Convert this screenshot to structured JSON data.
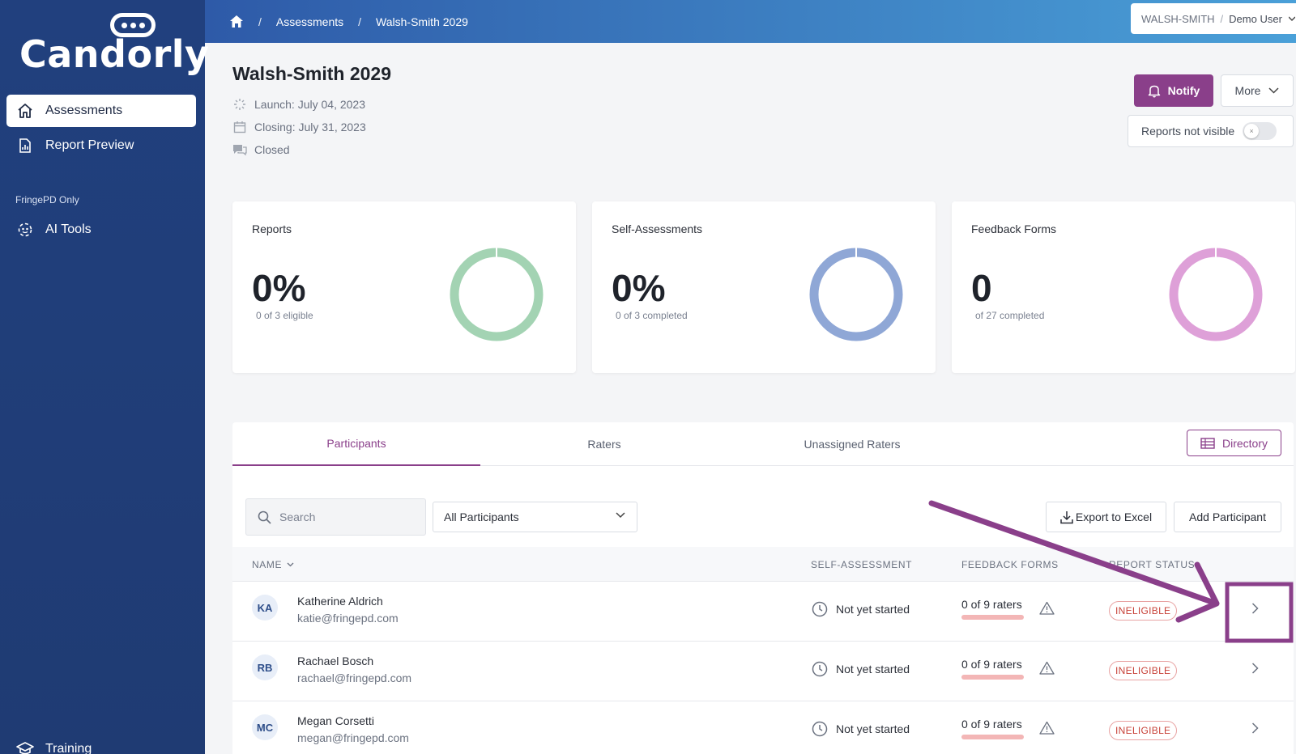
{
  "app": {
    "logo_text": "Candorly"
  },
  "sidebar": {
    "items": [
      {
        "label": "Assessments",
        "icon": "home-icon",
        "active": true
      },
      {
        "label": "Report Preview",
        "icon": "report-icon",
        "active": false
      }
    ],
    "section_label": "FringePD Only",
    "tools": [
      {
        "label": "AI Tools",
        "icon": "ai-tools-icon"
      }
    ],
    "footer_item": {
      "label": "Training",
      "icon": "graduation-cap-icon"
    }
  },
  "topbar": {
    "breadcrumbs": [
      "Assessments",
      "Walsh-Smith 2029"
    ],
    "org": "WALSH-SMITH",
    "user": "Demo User"
  },
  "header": {
    "title": "Walsh-Smith 2029",
    "launch": "Launch: July 04, 2023",
    "closing": "Closing: July 31, 2023",
    "status": "Closed",
    "notify_label": "Notify",
    "more_label": "More",
    "reports_visibility_label": "Reports not visible",
    "reports_visible": false
  },
  "stats": [
    {
      "title": "Reports",
      "value": "0%",
      "sub": "0 of 3 eligible",
      "color": "#a3d3b3",
      "fraction": 0
    },
    {
      "title": "Self-Assessments",
      "value": "0%",
      "sub": "0 of 3 completed",
      "color": "#8fa7d6",
      "fraction": 0
    },
    {
      "title": "Feedback Forms",
      "value": "0",
      "sub": "of 27 completed",
      "color": "#dea0d8",
      "fraction": 0
    }
  ],
  "tabs": [
    {
      "label": "Participants",
      "active": true
    },
    {
      "label": "Raters",
      "active": false
    },
    {
      "label": "Unassigned Raters",
      "active": false
    }
  ],
  "directory_label": "Directory",
  "toolbar": {
    "search_placeholder": "Search",
    "filter_value": "All Participants",
    "export_label": "Export to Excel",
    "add_label": "Add Participant"
  },
  "table": {
    "columns": {
      "name": "NAME",
      "self_assessment": "SELF-ASSESSMENT",
      "feedback_forms": "FEEDBACK FORMS",
      "report_status": "REPORT STATUS"
    },
    "rows": [
      {
        "initials": "KA",
        "name": "Katherine Aldrich",
        "email": "katie@fringepd.com",
        "self_assessment": "Not yet started",
        "feedback": "0 of 9 raters",
        "report_status": "INELIGIBLE"
      },
      {
        "initials": "RB",
        "name": "Rachael Bosch",
        "email": "rachael@fringepd.com",
        "self_assessment": "Not yet started",
        "feedback": "0 of 9 raters",
        "report_status": "INELIGIBLE"
      },
      {
        "initials": "MC",
        "name": "Megan Corsetti",
        "email": "megan@fringepd.com",
        "self_assessment": "Not yet started",
        "feedback": "0 of 9 raters",
        "report_status": "INELIGIBLE"
      }
    ]
  },
  "colors": {
    "accent": "#8a3f8a",
    "sidebar": "#21407e",
    "badge": "#c8433a",
    "annotation": "#8a3f8a"
  }
}
